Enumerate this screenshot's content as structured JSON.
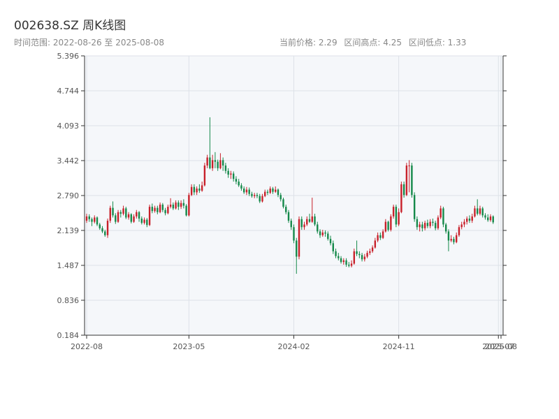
{
  "header": {
    "title": "002638.SZ 周K线图",
    "range_label": "时间范围: 2022-08-26 至 2025-08-08",
    "current_price": "当前价格: 2.29",
    "range_high": "区间高点: 4.25",
    "range_low": "区间低点: 1.33"
  },
  "colors": {
    "up": "#c8202a",
    "down": "#15894a",
    "plot_bg": "#f5f7fa",
    "grid": "#dde2e8"
  },
  "chart_data": {
    "type": "candlestick",
    "title": "002638.SZ 周K线图",
    "xlabel": "",
    "ylabel": "",
    "ylim": [
      0.184,
      5.396
    ],
    "yticks": [
      "0.184",
      "0.836",
      "1.487",
      "2.139",
      "2.790",
      "3.442",
      "4.093",
      "4.744",
      "5.396"
    ],
    "xticks": [
      {
        "label": "2022-08",
        "week": 0
      },
      {
        "label": "2023-05",
        "week": 39
      },
      {
        "label": "2024-02",
        "week": 79
      },
      {
        "label": "2024-11",
        "week": 119
      },
      {
        "label": "2025-07",
        "week": 157
      },
      {
        "label": "2025-08",
        "week": 158
      }
    ],
    "weeks": 159,
    "candles": [
      [
        2.32,
        2.4,
        2.45,
        2.28
      ],
      [
        2.4,
        2.35,
        2.44,
        2.3
      ],
      [
        2.35,
        2.3,
        2.38,
        2.22
      ],
      [
        2.3,
        2.38,
        2.42,
        2.27
      ],
      [
        2.38,
        2.25,
        2.4,
        2.22
      ],
      [
        2.25,
        2.18,
        2.28,
        2.15
      ],
      [
        2.18,
        2.12,
        2.22,
        2.09
      ],
      [
        2.12,
        2.05,
        2.15,
        2.02
      ],
      [
        2.05,
        2.32,
        2.36,
        2.0
      ],
      [
        2.32,
        2.56,
        2.6,
        2.28
      ],
      [
        2.56,
        2.42,
        2.68,
        2.38
      ],
      [
        2.42,
        2.3,
        2.46,
        2.26
      ],
      [
        2.3,
        2.48,
        2.52,
        2.28
      ],
      [
        2.48,
        2.45,
        2.52,
        2.38
      ],
      [
        2.45,
        2.55,
        2.6,
        2.42
      ],
      [
        2.55,
        2.38,
        2.58,
        2.35
      ],
      [
        2.38,
        2.44,
        2.48,
        2.34
      ],
      [
        2.44,
        2.3,
        2.46,
        2.27
      ],
      [
        2.3,
        2.4,
        2.44,
        2.28
      ],
      [
        2.4,
        2.48,
        2.52,
        2.36
      ],
      [
        2.48,
        2.36,
        2.5,
        2.3
      ],
      [
        2.36,
        2.28,
        2.4,
        2.25
      ],
      [
        2.28,
        2.34,
        2.38,
        2.25
      ],
      [
        2.34,
        2.24,
        2.37,
        2.2
      ],
      [
        2.24,
        2.58,
        2.62,
        2.22
      ],
      [
        2.58,
        2.5,
        2.64,
        2.46
      ],
      [
        2.5,
        2.56,
        2.6,
        2.47
      ],
      [
        2.56,
        2.48,
        2.6,
        2.44
      ],
      [
        2.48,
        2.62,
        2.66,
        2.46
      ],
      [
        2.62,
        2.52,
        2.65,
        2.48
      ],
      [
        2.52,
        2.46,
        2.56,
        2.42
      ],
      [
        2.46,
        2.58,
        2.62,
        2.44
      ],
      [
        2.58,
        2.62,
        2.74,
        2.55
      ],
      [
        2.62,
        2.55,
        2.66,
        2.52
      ],
      [
        2.55,
        2.66,
        2.7,
        2.53
      ],
      [
        2.66,
        2.58,
        2.7,
        2.52
      ],
      [
        2.58,
        2.65,
        2.7,
        2.54
      ],
      [
        2.65,
        2.6,
        2.72,
        2.55
      ],
      [
        2.6,
        2.42,
        2.63,
        2.4
      ],
      [
        2.42,
        2.8,
        2.84,
        2.4
      ],
      [
        2.8,
        2.95,
        3.0,
        2.78
      ],
      [
        2.95,
        2.85,
        3.0,
        2.8
      ],
      [
        2.85,
        2.92,
        2.96,
        2.8
      ],
      [
        2.92,
        2.88,
        3.0,
        2.84
      ],
      [
        2.88,
        2.98,
        3.05,
        2.86
      ],
      [
        2.98,
        3.35,
        3.4,
        2.96
      ],
      [
        3.35,
        3.5,
        3.55,
        3.3
      ],
      [
        3.5,
        3.3,
        4.25,
        3.28
      ],
      [
        3.3,
        3.45,
        3.55,
        3.25
      ],
      [
        3.45,
        3.42,
        3.6,
        3.3
      ],
      [
        3.42,
        3.3,
        3.46,
        3.25
      ],
      [
        3.3,
        3.45,
        3.58,
        3.28
      ],
      [
        3.45,
        3.35,
        3.5,
        3.25
      ],
      [
        3.35,
        3.25,
        3.4,
        3.2
      ],
      [
        3.25,
        3.18,
        3.3,
        3.12
      ],
      [
        3.18,
        3.2,
        3.25,
        3.1
      ],
      [
        3.2,
        3.1,
        3.24,
        3.05
      ],
      [
        3.1,
        3.05,
        3.15,
        3.0
      ],
      [
        3.05,
        2.98,
        3.1,
        2.95
      ],
      [
        2.98,
        2.92,
        3.02,
        2.88
      ],
      [
        2.92,
        2.85,
        2.96,
        2.82
      ],
      [
        2.85,
        2.9,
        2.95,
        2.8
      ],
      [
        2.9,
        2.82,
        2.94,
        2.78
      ],
      [
        2.82,
        2.78,
        2.86,
        2.75
      ],
      [
        2.78,
        2.8,
        2.84,
        2.74
      ],
      [
        2.8,
        2.78,
        2.84,
        2.74
      ],
      [
        2.78,
        2.68,
        2.82,
        2.65
      ],
      [
        2.68,
        2.78,
        2.82,
        2.66
      ],
      [
        2.78,
        2.86,
        2.9,
        2.76
      ],
      [
        2.86,
        2.84,
        2.9,
        2.8
      ],
      [
        2.84,
        2.92,
        2.96,
        2.82
      ],
      [
        2.92,
        2.86,
        2.95,
        2.82
      ],
      [
        2.86,
        2.9,
        2.96,
        2.84
      ],
      [
        2.9,
        2.8,
        2.92,
        2.76
      ],
      [
        2.8,
        2.72,
        2.84,
        2.68
      ],
      [
        2.72,
        2.58,
        2.75,
        2.55
      ],
      [
        2.58,
        2.48,
        2.62,
        2.44
      ],
      [
        2.48,
        2.32,
        2.52,
        2.28
      ],
      [
        2.32,
        2.2,
        2.36,
        2.15
      ],
      [
        2.2,
        1.95,
        2.25,
        1.9
      ],
      [
        1.95,
        1.65,
        2.0,
        1.33
      ],
      [
        1.65,
        2.35,
        2.4,
        1.6
      ],
      [
        2.35,
        2.2,
        2.4,
        2.15
      ],
      [
        2.2,
        2.25,
        2.3,
        2.15
      ],
      [
        2.25,
        2.35,
        2.4,
        2.22
      ],
      [
        2.35,
        2.3,
        2.45,
        2.28
      ],
      [
        2.3,
        2.4,
        2.75,
        2.28
      ],
      [
        2.4,
        2.25,
        2.45,
        2.22
      ],
      [
        2.25,
        2.12,
        2.3,
        2.08
      ],
      [
        2.12,
        2.05,
        2.16,
        2.0
      ],
      [
        2.05,
        2.1,
        2.15,
        2.02
      ],
      [
        2.1,
        2.08,
        2.14,
        2.02
      ],
      [
        2.08,
        1.98,
        2.12,
        1.95
      ],
      [
        1.98,
        1.9,
        2.04,
        1.86
      ],
      [
        1.9,
        1.75,
        1.95,
        1.7
      ],
      [
        1.75,
        1.66,
        1.8,
        1.62
      ],
      [
        1.66,
        1.62,
        1.72,
        1.58
      ],
      [
        1.62,
        1.55,
        1.66,
        1.52
      ],
      [
        1.55,
        1.58,
        1.62,
        1.5
      ],
      [
        1.58,
        1.5,
        1.62,
        1.46
      ],
      [
        1.5,
        1.48,
        1.55,
        1.45
      ],
      [
        1.48,
        1.52,
        1.58,
        1.45
      ],
      [
        1.52,
        1.75,
        1.8,
        1.5
      ],
      [
        1.75,
        1.7,
        1.95,
        1.66
      ],
      [
        1.7,
        1.68,
        1.75,
        1.62
      ],
      [
        1.68,
        1.6,
        1.72,
        1.56
      ],
      [
        1.6,
        1.65,
        1.7,
        1.56
      ],
      [
        1.65,
        1.72,
        1.76,
        1.62
      ],
      [
        1.72,
        1.75,
        1.8,
        1.68
      ],
      [
        1.75,
        1.82,
        1.86,
        1.72
      ],
      [
        1.82,
        1.95,
        2.0,
        1.8
      ],
      [
        1.95,
        2.05,
        2.1,
        1.92
      ],
      [
        2.05,
        2.0,
        2.1,
        1.96
      ],
      [
        2.0,
        2.12,
        2.16,
        1.98
      ],
      [
        2.12,
        2.3,
        2.35,
        2.1
      ],
      [
        2.3,
        2.15,
        2.32,
        2.12
      ],
      [
        2.15,
        2.4,
        2.44,
        2.12
      ],
      [
        2.4,
        2.58,
        2.62,
        2.36
      ],
      [
        2.58,
        2.25,
        2.62,
        2.2
      ],
      [
        2.25,
        2.48,
        2.55,
        2.22
      ],
      [
        2.48,
        3.0,
        3.05,
        2.46
      ],
      [
        3.0,
        2.8,
        3.05,
        2.75
      ],
      [
        2.8,
        3.35,
        3.4,
        2.78
      ],
      [
        3.35,
        3.35,
        3.45,
        2.85
      ],
      [
        3.35,
        2.8,
        3.4,
        2.75
      ],
      [
        2.8,
        2.35,
        2.85,
        2.3
      ],
      [
        2.35,
        2.2,
        2.4,
        2.15
      ],
      [
        2.2,
        2.25,
        2.3,
        2.12
      ],
      [
        2.25,
        2.18,
        2.3,
        2.12
      ],
      [
        2.18,
        2.28,
        2.32,
        2.14
      ],
      [
        2.28,
        2.22,
        2.34,
        2.18
      ],
      [
        2.22,
        2.3,
        2.35,
        2.18
      ],
      [
        2.3,
        2.28,
        2.36,
        2.22
      ],
      [
        2.28,
        2.18,
        2.32,
        2.14
      ],
      [
        2.18,
        2.38,
        2.42,
        2.15
      ],
      [
        2.38,
        2.55,
        2.6,
        2.35
      ],
      [
        2.55,
        2.25,
        2.58,
        2.2
      ],
      [
        2.25,
        2.12,
        2.28,
        2.08
      ],
      [
        2.12,
        1.95,
        2.16,
        1.75
      ],
      [
        1.95,
        1.98,
        2.05,
        1.92
      ],
      [
        1.98,
        1.92,
        2.02,
        1.88
      ],
      [
        1.92,
        2.05,
        2.1,
        1.9
      ],
      [
        2.05,
        2.2,
        2.24,
        2.02
      ],
      [
        2.2,
        2.25,
        2.3,
        2.16
      ],
      [
        2.25,
        2.3,
        2.35,
        2.2
      ],
      [
        2.3,
        2.36,
        2.4,
        2.25
      ],
      [
        2.36,
        2.32,
        2.42,
        2.28
      ],
      [
        2.32,
        2.4,
        2.45,
        2.28
      ],
      [
        2.4,
        2.55,
        2.6,
        2.38
      ],
      [
        2.55,
        2.45,
        2.72,
        2.42
      ],
      [
        2.45,
        2.55,
        2.6,
        2.42
      ],
      [
        2.55,
        2.42,
        2.58,
        2.38
      ],
      [
        2.42,
        2.38,
        2.46,
        2.34
      ],
      [
        2.38,
        2.33,
        2.44,
        2.3
      ],
      [
        2.33,
        2.4,
        2.44,
        2.3
      ],
      [
        2.4,
        2.29,
        2.42,
        2.26
      ]
    ]
  }
}
